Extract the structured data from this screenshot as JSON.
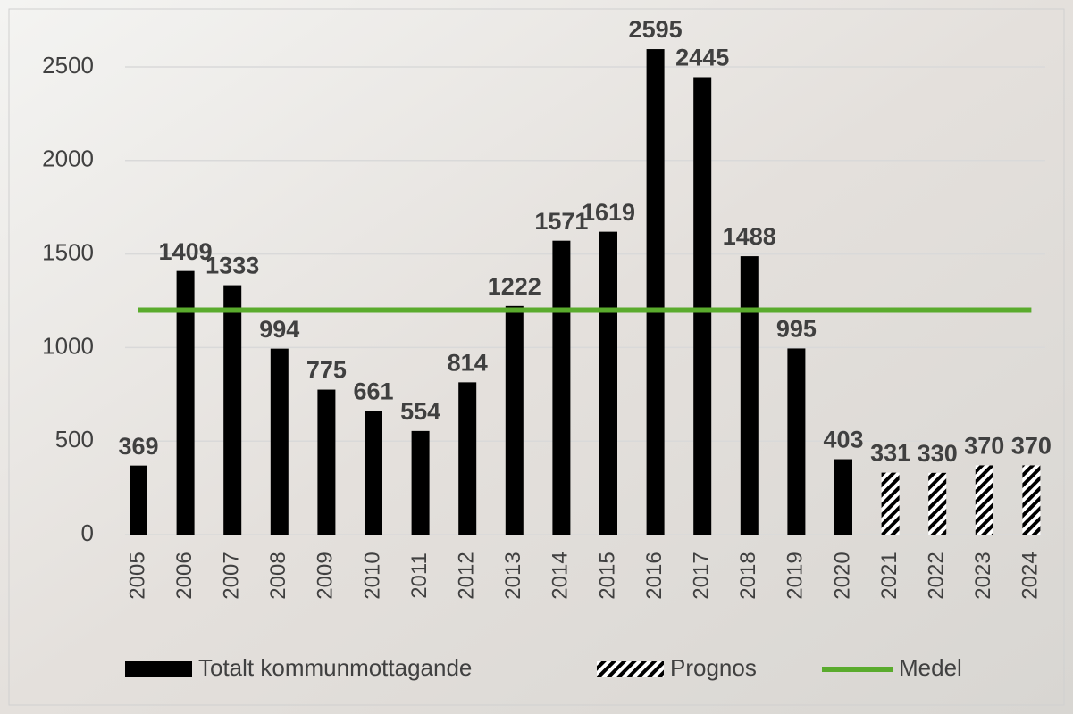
{
  "chart_data": {
    "type": "bar",
    "categories": [
      "2005",
      "2006",
      "2007",
      "2008",
      "2009",
      "2010",
      "2011",
      "2012",
      "2013",
      "2014",
      "2015",
      "2016",
      "2017",
      "2018",
      "2019",
      "2020",
      "2021",
      "2022",
      "2023",
      "2024"
    ],
    "series": [
      {
        "name": "Totalt kommunmottagande",
        "color": "#000000",
        "kind": "bar",
        "values": [
          369,
          1409,
          1333,
          994,
          775,
          661,
          554,
          814,
          1222,
          1571,
          1619,
          2595,
          2445,
          1488,
          995,
          403,
          null,
          null,
          null,
          null
        ]
      },
      {
        "name": "Prognos",
        "color": "#000000",
        "kind": "hatched-bar",
        "values": [
          null,
          null,
          null,
          null,
          null,
          null,
          null,
          null,
          null,
          null,
          null,
          null,
          null,
          null,
          null,
          null,
          331,
          330,
          370,
          370
        ]
      },
      {
        "name": "Medel",
        "color": "#5aab2d",
        "kind": "line",
        "values": [
          1200,
          1200,
          1200,
          1200,
          1200,
          1200,
          1200,
          1200,
          1200,
          1200,
          1200,
          1200,
          1200,
          1200,
          1200,
          1200,
          1200,
          1200,
          1200,
          1200
        ]
      }
    ],
    "ylim": [
      0,
      2600
    ],
    "yticks": [
      0,
      500,
      1000,
      1500,
      2000,
      2500
    ],
    "grid": true,
    "legend": "bottom"
  }
}
